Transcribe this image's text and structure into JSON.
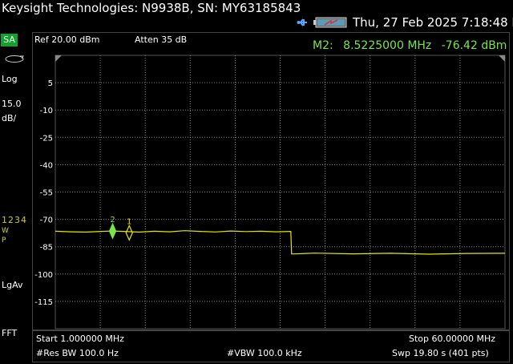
{
  "header": {
    "title": "Keysight Technologies: N9938B, SN: MY63185843",
    "datetime": "Thu, 27 Feb 2025 7:18:48 PM",
    "usb_icon": "usb-icon",
    "battery_icon": "battery-charging-icon"
  },
  "mode": {
    "label": "SA"
  },
  "settings": {
    "ref": "Ref 20.00 dBm",
    "atten": "Atten 35 dB"
  },
  "marker_readout": {
    "name": "M2:",
    "freq": "8.5225000 MHz",
    "level": "-76.42 dBm"
  },
  "side_panel": {
    "scale_type": "Log",
    "scale_value": "15.0",
    "scale_unit": "dB/",
    "traces": "1234",
    "trace_w": "W",
    "trace_p": "P",
    "detector": "LgAv",
    "sweep_type": "FFT",
    "loop_icon": "loop-icon"
  },
  "footer": {
    "start": "Start 1.000000 MHz",
    "stop": "Stop 60.00000 MHz",
    "res_bw": "#Res BW 100.0  Hz",
    "vbw": "#VBW 100.0 kHz",
    "sweep": "Swp 19.80  s (401 pts)"
  },
  "chart_data": {
    "type": "line",
    "title": "",
    "xlabel": "",
    "ylabel": "",
    "xlim": [
      1.0,
      60.0
    ],
    "ylim": [
      -130,
      20
    ],
    "y_ticks": [
      "5",
      "-10",
      "-25",
      "-40",
      "-55",
      "-70",
      "-85",
      "-100",
      "-115"
    ],
    "y_tick_values": [
      5,
      -10,
      -25,
      -40,
      -55,
      -70,
      -85,
      -100,
      -115
    ],
    "grid": true,
    "series": [
      {
        "color": "#e6e600",
        "x": [
          1.0,
          3.0,
          5.0,
          7.0,
          8.5,
          10.0,
          12.0,
          14.0,
          16.0,
          18.0,
          20.0,
          22.0,
          24.0,
          26.0,
          28.0,
          30.0,
          31.9,
          32.0,
          35.0,
          40.0,
          45.0,
          50.0,
          55.0,
          60.0
        ],
        "y": [
          -76.5,
          -76.8,
          -77.0,
          -76.6,
          -76.4,
          -76.6,
          -77.0,
          -76.5,
          -76.8,
          -76.2,
          -76.6,
          -76.9,
          -76.4,
          -76.7,
          -76.5,
          -76.8,
          -76.6,
          -89.0,
          -88.5,
          -88.9,
          -88.6,
          -89.1,
          -88.7,
          -88.6
        ]
      }
    ],
    "markers": [
      {
        "label": "2",
        "x": 8.5225,
        "y": -76.42,
        "active": true
      },
      {
        "label": "1",
        "x": 10.7,
        "y": -77.4,
        "active": false
      }
    ]
  }
}
